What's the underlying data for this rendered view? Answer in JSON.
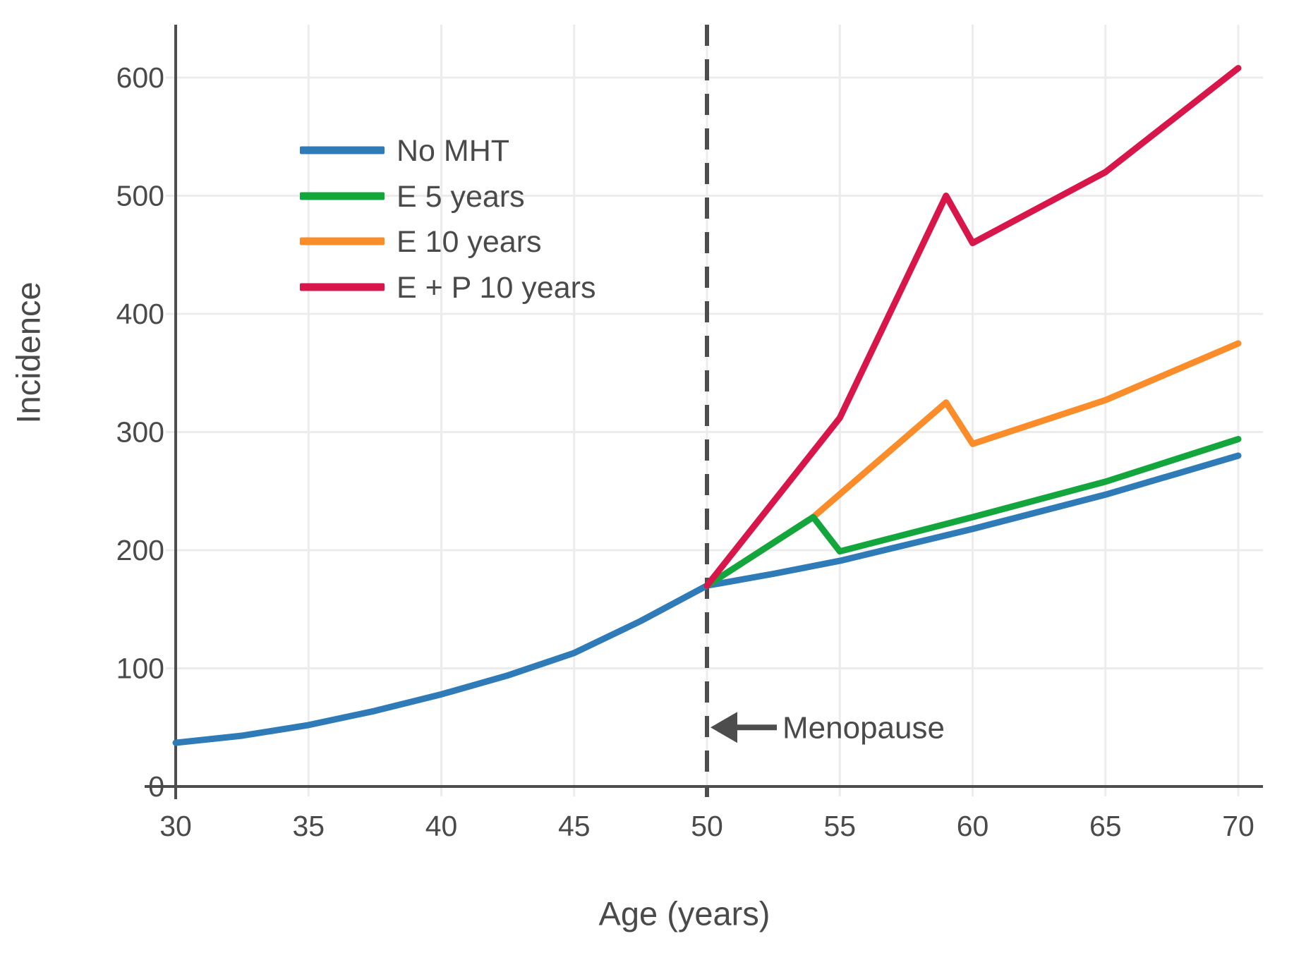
{
  "figure": {
    "background": "#ffffff",
    "y_axis_title": "Incidence",
    "x_axis_title": "Age (years)"
  },
  "chart_data": {
    "type": "line",
    "title": "",
    "xlabel": "Age (years)",
    "ylabel": "Incidence",
    "xlim": [
      30,
      71
    ],
    "ylim": [
      0,
      645
    ],
    "x_ticks": [
      30,
      35,
      40,
      45,
      50,
      55,
      60,
      65,
      70
    ],
    "y_ticks": [
      0,
      100,
      200,
      300,
      400,
      500,
      600
    ],
    "grid": true,
    "legend_position": "upper-left-inside",
    "axis_color": "#4d4d4d",
    "grid_color": "#ececec",
    "text_color": "#4a4a4a",
    "series": [
      {
        "name": "No MHT",
        "color": "#2e7bb8",
        "z": 0,
        "points": [
          [
            30,
            37
          ],
          [
            32.5,
            43
          ],
          [
            35,
            52
          ],
          [
            37.5,
            64
          ],
          [
            40,
            78
          ],
          [
            42.5,
            94
          ],
          [
            45,
            113
          ],
          [
            47.5,
            140
          ],
          [
            50,
            170
          ],
          [
            52.5,
            180
          ],
          [
            55,
            191
          ],
          [
            60,
            218
          ],
          [
            65,
            247
          ],
          [
            70,
            280
          ]
        ]
      },
      {
        "name": "E 5 years",
        "color": "#12a63c",
        "z": 2,
        "points": [
          [
            50,
            170
          ],
          [
            54,
            228
          ],
          [
            55,
            199
          ],
          [
            60,
            228
          ],
          [
            65,
            258
          ],
          [
            70,
            294
          ]
        ]
      },
      {
        "name": "E 10 years",
        "color": "#fb8c2a",
        "z": 1,
        "points": [
          [
            50,
            170
          ],
          [
            54,
            228
          ],
          [
            59,
            325
          ],
          [
            60,
            290
          ],
          [
            65,
            327
          ],
          [
            70,
            375
          ]
        ]
      },
      {
        "name": "E + P 10 years",
        "color": "#d8164a",
        "z": 3,
        "points": [
          [
            50,
            170
          ],
          [
            55,
            312
          ],
          [
            59,
            500
          ],
          [
            60,
            460
          ],
          [
            65,
            520
          ],
          [
            70,
            608
          ]
        ]
      }
    ],
    "annotations": {
      "vline_x": 50,
      "vline_style": "dashed",
      "label": "Menopause",
      "label_y": 50,
      "arrow_direction": "left"
    }
  }
}
